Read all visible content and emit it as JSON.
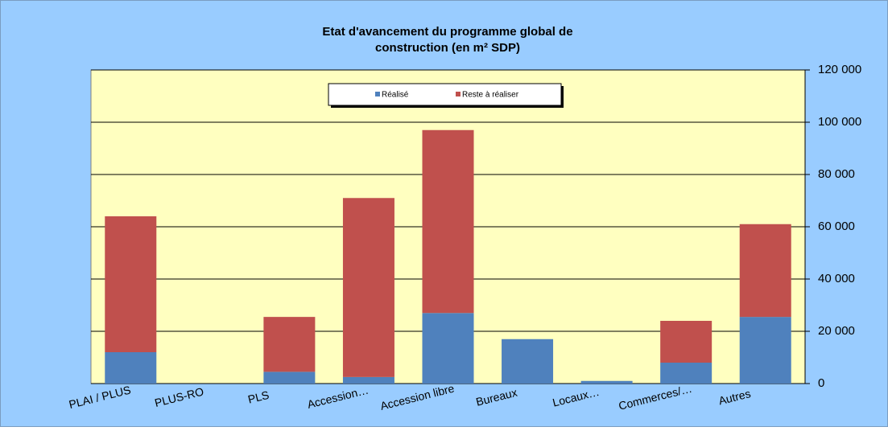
{
  "chart_data": {
    "type": "stacked_bar",
    "title": [
      "Etat d'avancement du programme global de",
      "construction (en m² SDP)"
    ],
    "categories": [
      "PLAI / PLUS",
      "PLUS-RO",
      "PLS",
      "Accession…",
      "Accession libre",
      "Bureaux",
      "Locaux…",
      "Commerces/…",
      "Autres"
    ],
    "series": [
      {
        "name": "Réalisé",
        "color": "#4f81bd",
        "values": [
          12000,
          0,
          4500,
          2500,
          27000,
          17000,
          1000,
          8000,
          25500
        ]
      },
      {
        "name": "Reste à réaliser",
        "color": "#c0504d",
        "values": [
          52000,
          0,
          21000,
          68500,
          70000,
          0,
          0,
          16000,
          35500
        ]
      }
    ],
    "ylim": [
      0,
      120000
    ],
    "yticks": [
      0,
      {
        "value": 20000,
        "label": "20 000"
      },
      {
        "value": 40000,
        "label": "40 000"
      },
      {
        "value": 60000,
        "label": "60 000"
      },
      {
        "value": 80000,
        "label": "80 000"
      },
      {
        "value": 100000,
        "label": "100 000"
      },
      {
        "value": 120000,
        "label": "120 000"
      }
    ],
    "grid": true,
    "legend": "top"
  }
}
